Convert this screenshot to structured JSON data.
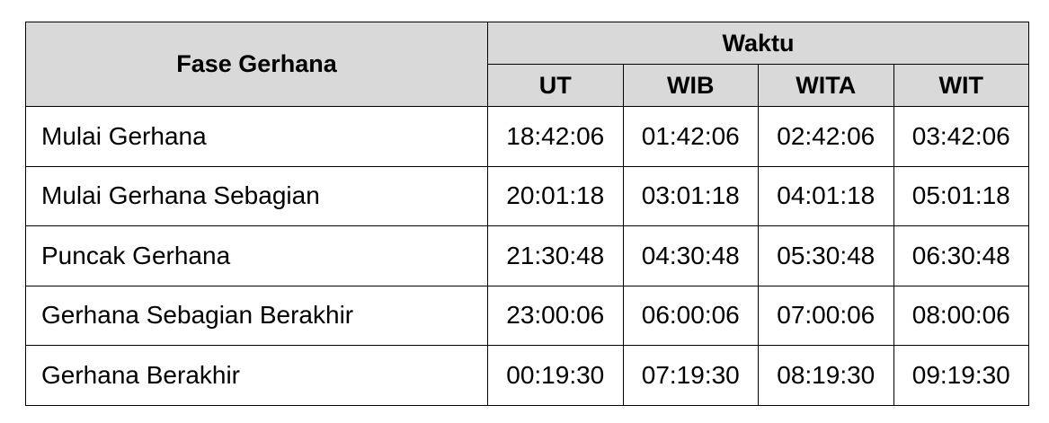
{
  "table": {
    "header_phase": "Fase Gerhana",
    "header_group": "Waktu",
    "columns": [
      "UT",
      "WIB",
      "WITA",
      "WIT"
    ],
    "rows": [
      {
        "phase": "Mulai Gerhana",
        "times": [
          "18:42:06",
          "01:42:06",
          "02:42:06",
          "03:42:06"
        ]
      },
      {
        "phase": "Mulai Gerhana Sebagian",
        "times": [
          "20:01:18",
          "03:01:18",
          "04:01:18",
          "05:01:18"
        ]
      },
      {
        "phase": "Puncak Gerhana",
        "times": [
          "21:30:48",
          "04:30:48",
          "05:30:48",
          "06:30:48"
        ]
      },
      {
        "phase": "Gerhana Sebagian Berakhir",
        "times": [
          "23:00:06",
          "06:00:06",
          "07:00:06",
          "08:00:06"
        ]
      },
      {
        "phase": "Gerhana Berakhir",
        "times": [
          "00:19:30",
          "07:19:30",
          "08:19:30",
          "09:19:30"
        ]
      }
    ]
  },
  "colors": {
    "header_background": "#d9d9d9",
    "border": "#000000",
    "text": "#000000"
  }
}
